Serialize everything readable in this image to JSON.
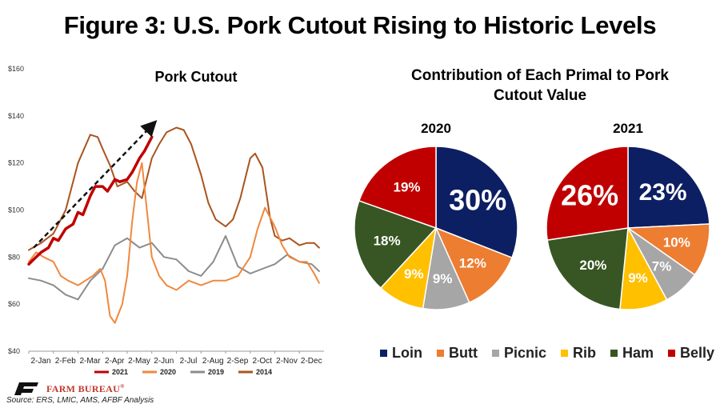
{
  "page": {
    "title": "Figure 3: U.S. Pork Cutout Rising to Historic Levels"
  },
  "colors": {
    "2021": "#c00000",
    "2020": "#f0883e",
    "2019": "#8c8c8c",
    "2014": "#a9541f",
    "Loin": "#0d1f63",
    "Butt": "#ed7d31",
    "Picnic": "#a6a6a6",
    "Rib": "#ffc000",
    "Ham": "#375623",
    "Belly": "#c00000"
  },
  "chart_data": [
    {
      "type": "line",
      "title": "Pork Cutout",
      "ylim": [
        40,
        160
      ],
      "yticks": [
        "$40",
        "$60",
        "$80",
        "$100",
        "$120",
        "$140",
        "$160"
      ],
      "ytick_values": [
        40,
        60,
        80,
        100,
        120,
        140,
        160
      ],
      "xticks": [
        "2-Jan",
        "2-Feb",
        "2-Mar",
        "2-Apr",
        "2-May",
        "2-Jun",
        "2-Jul",
        "2-Aug",
        "2-Sep",
        "2-Oct",
        "2-Nov",
        "2-Dec"
      ],
      "xlim": [
        0,
        12
      ],
      "series": [
        {
          "name": "2021",
          "x": [
            0,
            0.2,
            0.5,
            0.8,
            1.0,
            1.2,
            1.5,
            1.8,
            2.0,
            2.2,
            2.5,
            2.7,
            3.0,
            3.2,
            3.5,
            3.7,
            4.0,
            4.2,
            4.5,
            4.7,
            5.0
          ],
          "y": [
            77,
            79,
            82,
            84,
            88,
            87,
            92,
            94,
            99,
            98,
            106,
            110,
            110,
            108,
            113,
            112,
            113,
            116,
            122,
            125,
            131
          ]
        },
        {
          "name": "2020",
          "x": [
            0,
            0.3,
            0.6,
            1.0,
            1.3,
            1.6,
            2.0,
            2.3,
            2.6,
            2.9,
            3.1,
            3.3,
            3.5,
            3.8,
            4.0,
            4.2,
            4.4,
            4.6,
            4.8,
            5.0,
            5.3,
            5.6,
            6.0,
            6.5,
            7.0,
            7.5,
            8.0,
            8.5,
            9.0,
            9.3,
            9.6,
            10.0,
            10.3,
            10.6,
            11.0,
            11.3,
            11.6,
            11.8
          ],
          "y": [
            78,
            82,
            80,
            78,
            72,
            70,
            68,
            70,
            72,
            75,
            70,
            55,
            52,
            60,
            72,
            95,
            112,
            120,
            100,
            80,
            72,
            68,
            66,
            70,
            68,
            70,
            70,
            72,
            80,
            92,
            101,
            93,
            85,
            80,
            78,
            78,
            73,
            69
          ]
        },
        {
          "name": "2019",
          "x": [
            0,
            0.5,
            1.0,
            1.5,
            2.0,
            2.5,
            3.0,
            3.5,
            4.0,
            4.5,
            5.0,
            5.5,
            6.0,
            6.5,
            7.0,
            7.5,
            8.0,
            8.5,
            9.0,
            9.5,
            10.0,
            10.5,
            11.0,
            11.5,
            11.8
          ],
          "y": [
            71,
            70,
            68,
            64,
            62,
            70,
            75,
            85,
            88,
            84,
            86,
            80,
            79,
            74,
            72,
            78,
            89,
            76,
            73,
            75,
            77,
            81,
            78,
            77,
            74
          ]
        },
        {
          "name": "2014",
          "x": [
            0,
            0.5,
            1.0,
            1.5,
            2.0,
            2.5,
            2.8,
            3.0,
            3.3,
            3.6,
            4.0,
            4.3,
            4.6,
            5.0,
            5.3,
            5.6,
            6.0,
            6.3,
            6.6,
            7.0,
            7.3,
            7.6,
            8.0,
            8.3,
            8.6,
            9.0,
            9.2,
            9.5,
            9.8,
            10.0,
            10.3,
            10.6,
            11.0,
            11.3,
            11.6,
            11.8
          ],
          "y": [
            83,
            86,
            90,
            100,
            120,
            132,
            131,
            126,
            119,
            110,
            112,
            108,
            105,
            122,
            128,
            133,
            135,
            134,
            128,
            115,
            103,
            96,
            93,
            96,
            105,
            122,
            124,
            118,
            97,
            89,
            87,
            88,
            85,
            86,
            86,
            84
          ]
        }
      ]
    },
    {
      "type": "pie",
      "title": "Contribution of Each Primal to Pork Cutout Value",
      "labels": [
        "Loin",
        "Butt",
        "Picnic",
        "Rib",
        "Ham",
        "Belly"
      ],
      "pies": [
        {
          "name": "2020",
          "values": [
            30,
            12,
            9,
            9,
            18,
            19
          ],
          "labels": [
            "30%",
            "12%",
            "9%",
            "9%",
            "18%",
            "19%"
          ]
        },
        {
          "name": "2021",
          "values": [
            23,
            10,
            7,
            9,
            20,
            26
          ],
          "labels": [
            "23%",
            "10%",
            "7%",
            "9%",
            "20%",
            "26%"
          ]
        }
      ]
    }
  ],
  "footer": {
    "logo_text": "FARM BUREAU",
    "logo_reg": "®",
    "source": "Source:  ERS, LMIC, AMS, AFBF Analysis"
  }
}
